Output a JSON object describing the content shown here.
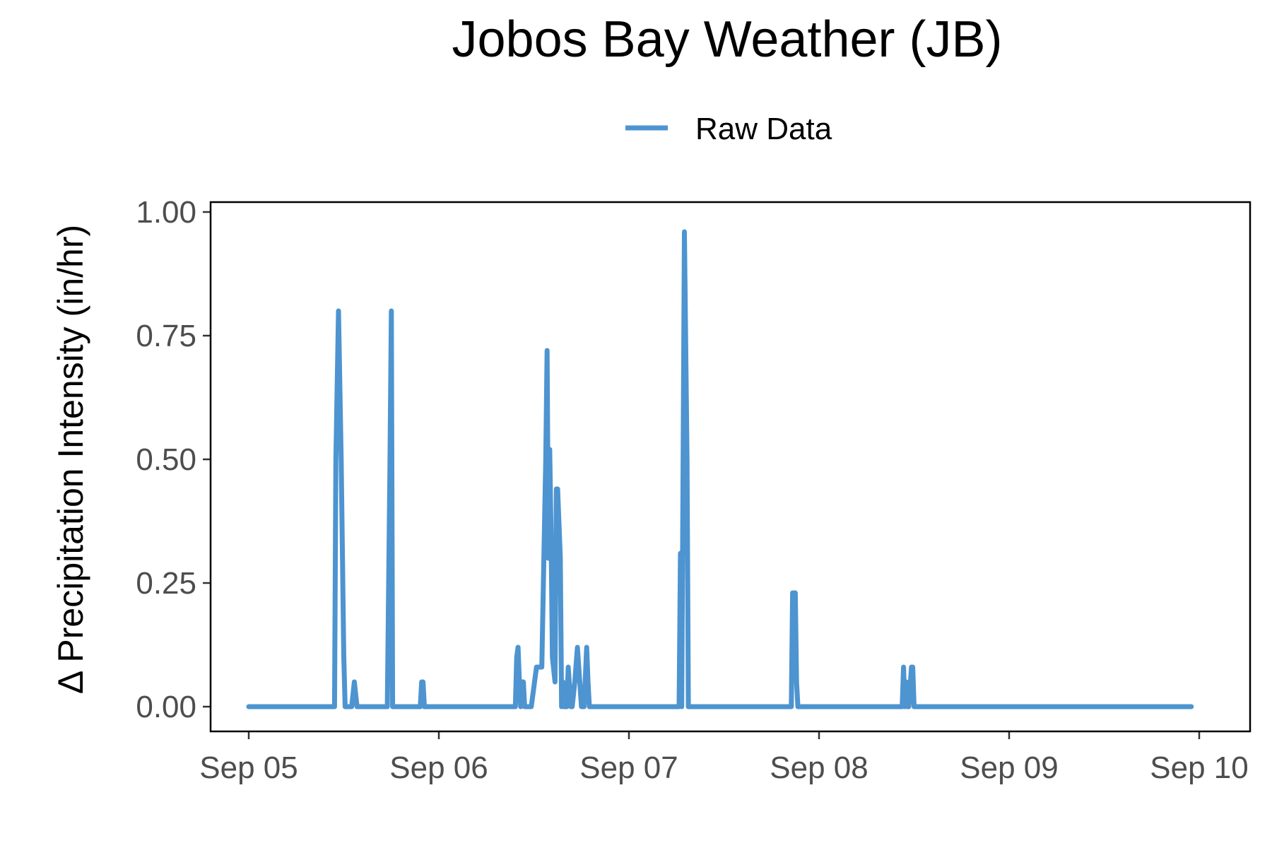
{
  "chart_data": {
    "type": "line",
    "title": "Jobos Bay Weather (JB)",
    "xlabel": "",
    "ylabel": "Δ Precipitation Intensity (in/hr)",
    "legend": {
      "position": "top",
      "items": [
        {
          "label": "Raw Data",
          "color": "#4d94d0"
        }
      ]
    },
    "x_ticks": [
      "Sep 05",
      "Sep 06",
      "Sep 07",
      "Sep 08",
      "Sep 09",
      "Sep 10"
    ],
    "y_ticks": [
      "0.00",
      "0.25",
      "0.50",
      "0.75",
      "1.00"
    ],
    "xlim": [
      "2024-09-05 00:00",
      "2024-09-10 00:00"
    ],
    "ylim": [
      -0.05,
      1.02
    ],
    "grid": false,
    "series": [
      {
        "name": "Raw Data",
        "color": "#4d94d0",
        "x": [
          "2024-09-05 00:00",
          "2024-09-05 10:50",
          "2024-09-05 11:00",
          "2024-09-05 11:20",
          "2024-09-05 11:40",
          "2024-09-05 12:00",
          "2024-09-05 12:10",
          "2024-09-05 13:00",
          "2024-09-05 13:20",
          "2024-09-05 13:40",
          "2024-09-05 17:30",
          "2024-09-05 17:50",
          "2024-09-05 18:00",
          "2024-09-05 18:10",
          "2024-09-05 21:40",
          "2024-09-05 21:50",
          "2024-09-05 22:00",
          "2024-09-05 22:10",
          "2024-09-06 09:40",
          "2024-09-06 09:50",
          "2024-09-06 10:00",
          "2024-09-06 10:10",
          "2024-09-06 10:20",
          "2024-09-06 10:30",
          "2024-09-06 10:40",
          "2024-09-06 10:50",
          "2024-09-06 11:00",
          "2024-09-06 11:10",
          "2024-09-06 11:40",
          "2024-09-06 12:20",
          "2024-09-06 13:00",
          "2024-09-06 13:30",
          "2024-09-06 13:40",
          "2024-09-06 13:50",
          "2024-09-06 14:00",
          "2024-09-06 14:10",
          "2024-09-06 14:20",
          "2024-09-06 14:40",
          "2024-09-06 14:50",
          "2024-09-06 15:00",
          "2024-09-06 15:20",
          "2024-09-06 15:30",
          "2024-09-06 15:40",
          "2024-09-06 15:50",
          "2024-09-06 16:10",
          "2024-09-06 16:20",
          "2024-09-06 16:40",
          "2024-09-06 16:50",
          "2024-09-06 17:10",
          "2024-09-06 17:30",
          "2024-09-06 18:00",
          "2024-09-06 18:20",
          "2024-09-06 18:40",
          "2024-09-06 18:50",
          "2024-09-06 19:00",
          "2024-09-06 19:10",
          "2024-09-06 19:20",
          "2024-09-06 19:30",
          "2024-09-06 19:40",
          "2024-09-06 20:00",
          "2024-09-06 20:20",
          "2024-09-06 20:40",
          "2024-09-06 21:00",
          "2024-09-07 06:20",
          "2024-09-07 06:30",
          "2024-09-07 06:40",
          "2024-09-07 07:00",
          "2024-09-07 07:20",
          "2024-09-07 07:30",
          "2024-09-07 07:40",
          "2024-09-07 08:00",
          "2024-09-07 08:20",
          "2024-09-07 20:30",
          "2024-09-07 20:40",
          "2024-09-07 21:00",
          "2024-09-07 21:10",
          "2024-09-07 21:20",
          "2024-09-07 21:40",
          "2024-09-07 22:00",
          "2024-09-08 10:30",
          "2024-09-08 10:40",
          "2024-09-08 10:50",
          "2024-09-08 11:00",
          "2024-09-08 11:10",
          "2024-09-08 11:20",
          "2024-09-08 11:40",
          "2024-09-08 11:50",
          "2024-09-08 12:00",
          "2024-09-08 12:20",
          "2024-09-08 12:30",
          "2024-09-08 12:50",
          "2024-09-09 23:00"
        ],
        "y": [
          0,
          0,
          0.5,
          0.8,
          0.5,
          0.1,
          0,
          0,
          0.05,
          0,
          0,
          0.5,
          0.8,
          0,
          0,
          0.05,
          0.05,
          0,
          0,
          0.1,
          0.12,
          0.05,
          0,
          0.05,
          0.05,
          0,
          0,
          0,
          0,
          0.08,
          0.08,
          0.5,
          0.72,
          0.3,
          0.52,
          0.35,
          0.1,
          0.05,
          0.44,
          0.44,
          0.3,
          0,
          0.05,
          0,
          0,
          0.08,
          0,
          0,
          0.05,
          0.12,
          0,
          0,
          0.12,
          0.05,
          0,
          0,
          0,
          0,
          0,
          0,
          0,
          0,
          0,
          0,
          0.31,
          0,
          0.96,
          0.5,
          0,
          0,
          0,
          0,
          0,
          0.23,
          0.23,
          0.05,
          0,
          0,
          0,
          0,
          0.08,
          0,
          0.05,
          0,
          0,
          0.08,
          0.08,
          0,
          0,
          0,
          0,
          0
        ]
      }
    ]
  }
}
